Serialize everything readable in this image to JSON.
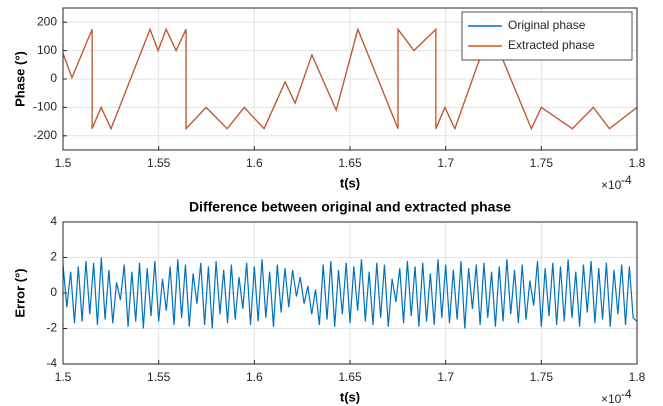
{
  "chart_data": [
    {
      "type": "line",
      "ylabel": "Phase (°)",
      "xlabel": "t(s)",
      "x_multiplier": "×10",
      "x_exponent": "-4",
      "xlim": [
        1.5,
        1.8
      ],
      "xticks": [
        1.5,
        1.55,
        1.6,
        1.65,
        1.7,
        1.75,
        1.8
      ],
      "ylim": [
        -250,
        250
      ],
      "yticks": [
        -200,
        -100,
        0,
        100,
        200
      ],
      "grid": true,
      "legend": "northeast",
      "x": [
        1.5,
        1.5047,
        1.5152,
        1.5152,
        1.5199,
        1.5251,
        1.5455,
        1.5497,
        1.5539,
        1.5591,
        1.5643,
        1.5643,
        1.5748,
        1.5858,
        1.5947,
        1.6051,
        1.6161,
        1.6213,
        1.6301,
        1.6428,
        1.6541,
        1.6751,
        1.6751,
        1.6834,
        1.6949,
        1.6949,
        1.6996,
        1.7048,
        1.7233,
        1.7448,
        1.75,
        1.7662,
        1.7772,
        1.7856,
        1.8
      ],
      "series": [
        {
          "name": "Original phase",
          "color": "#0072bd",
          "values": [
            90,
            5,
            175,
            -175,
            -100,
            -175,
            175,
            100,
            175,
            100,
            175,
            -175,
            -100,
            -175,
            -100,
            -175,
            -10,
            -85,
            85,
            -110,
            175,
            -175,
            175,
            100,
            175,
            -175,
            -100,
            -175,
            175,
            -175,
            -100,
            -175,
            -100,
            -175,
            -100
          ]
        },
        {
          "name": "Extracted phase",
          "color": "#d95319",
          "values": [
            90,
            5,
            175,
            -175,
            -100,
            -175,
            175,
            100,
            175,
            100,
            175,
            -175,
            -100,
            -175,
            -100,
            -175,
            -10,
            -85,
            85,
            -110,
            175,
            -175,
            175,
            100,
            175,
            -175,
            -100,
            -175,
            175,
            -175,
            -100,
            -175,
            -100,
            -175,
            -100
          ]
        }
      ]
    },
    {
      "type": "line",
      "title": "Difference between original and extracted phase",
      "ylabel": "Error (°)",
      "xlabel": "t(s)",
      "x_multiplier": "×10",
      "x_exponent": "-4",
      "xlim": [
        1.5,
        1.8
      ],
      "xticks": [
        1.5,
        1.55,
        1.6,
        1.65,
        1.7,
        1.75,
        1.8
      ],
      "ylim": [
        -4,
        4
      ],
      "yticks": [
        -4,
        -2,
        0,
        2,
        4
      ],
      "grid": true,
      "x": [
        1.5,
        1.502,
        1.504,
        1.506,
        1.508,
        1.51,
        1.512,
        1.514,
        1.516,
        1.518,
        1.52,
        1.522,
        1.524,
        1.526,
        1.528,
        1.53,
        1.532,
        1.534,
        1.536,
        1.538,
        1.54,
        1.542,
        1.544,
        1.546,
        1.548,
        1.55,
        1.552,
        1.554,
        1.556,
        1.558,
        1.56,
        1.562,
        1.564,
        1.566,
        1.568,
        1.57,
        1.572,
        1.574,
        1.576,
        1.578,
        1.58,
        1.582,
        1.584,
        1.586,
        1.588,
        1.59,
        1.592,
        1.594,
        1.596,
        1.598,
        1.6,
        1.602,
        1.604,
        1.606,
        1.608,
        1.61,
        1.612,
        1.614,
        1.616,
        1.618,
        1.62,
        1.622,
        1.624,
        1.626,
        1.628,
        1.63,
        1.632,
        1.634,
        1.636,
        1.638,
        1.64,
        1.642,
        1.644,
        1.646,
        1.648,
        1.65,
        1.652,
        1.654,
        1.656,
        1.658,
        1.66,
        1.662,
        1.664,
        1.666,
        1.668,
        1.67,
        1.672,
        1.674,
        1.676,
        1.678,
        1.68,
        1.682,
        1.684,
        1.686,
        1.688,
        1.69,
        1.692,
        1.694,
        1.696,
        1.698,
        1.7,
        1.702,
        1.704,
        1.706,
        1.708,
        1.71,
        1.712,
        1.714,
        1.716,
        1.718,
        1.72,
        1.722,
        1.724,
        1.726,
        1.728,
        1.73,
        1.732,
        1.734,
        1.736,
        1.738,
        1.74,
        1.742,
        1.744,
        1.746,
        1.748,
        1.75,
        1.752,
        1.754,
        1.756,
        1.758,
        1.76,
        1.762,
        1.764,
        1.766,
        1.768,
        1.77,
        1.772,
        1.774,
        1.776,
        1.778,
        1.78,
        1.782,
        1.784,
        1.786,
        1.788,
        1.79,
        1.792,
        1.794,
        1.796,
        1.798,
        1.8
      ],
      "series": [
        {
          "name": "Error",
          "color": "#0072bd",
          "values": [
            1.6,
            -0.8,
            1.2,
            -1.7,
            1.5,
            -1.6,
            1.8,
            -1.2,
            1.7,
            -1.8,
            2.0,
            -1.5,
            1.3,
            -1.7,
            0.6,
            -0.4,
            1.6,
            -1.9,
            1.2,
            -1.6,
            1.7,
            -2.0,
            1.4,
            -1.3,
            1.8,
            -1.6,
            0.8,
            -1.0,
            1.5,
            -1.8,
            1.9,
            -1.4,
            1.6,
            -1.9,
            1.1,
            -0.6,
            1.7,
            -1.8,
            1.5,
            -2.0,
            1.8,
            -1.2,
            1.3,
            -1.7,
            1.6,
            -1.5,
            0.9,
            -0.9,
            1.7,
            -1.8,
            1.5,
            -1.6,
            1.9,
            -1.4,
            1.2,
            -1.9,
            1.6,
            -1.1,
            1.4,
            -0.8,
            1.3,
            -0.2,
            0.9,
            -0.6,
            0.4,
            -1.2,
            0.2,
            -1.8,
            1.6,
            -1.5,
            1.8,
            -1.9,
            1.3,
            -1.2,
            1.7,
            -1.7,
            1.5,
            -1.0,
            1.9,
            -1.6,
            1.2,
            -1.8,
            1.7,
            -1.4,
            1.6,
            -1.9,
            0.8,
            -0.5,
            1.4,
            -1.7,
            1.8,
            -1.3,
            1.5,
            -1.9,
            1.7,
            -1.6,
            1.1,
            -1.8,
            1.9,
            -1.4,
            1.6,
            -1.7,
            1.3,
            -1.5,
            1.8,
            -2.0,
            1.4,
            -0.9,
            1.6,
            -1.8,
            1.7,
            -1.4,
            1.2,
            -1.9,
            1.5,
            -1.6,
            1.9,
            -1.2,
            1.3,
            -1.7,
            1.6,
            -1.5,
            0.7,
            -0.7,
            1.8,
            -1.9,
            1.4,
            -1.3,
            1.7,
            -1.8,
            1.5,
            -1.6,
            1.9,
            -1.4,
            1.2,
            -1.9,
            1.6,
            -1.1,
            1.8,
            -1.7,
            1.4,
            -1.5,
            1.7,
            -1.9,
            1.3,
            -1.2,
            1.6,
            -1.8,
            1.5,
            -1.4,
            -1.6
          ]
        }
      ]
    }
  ]
}
